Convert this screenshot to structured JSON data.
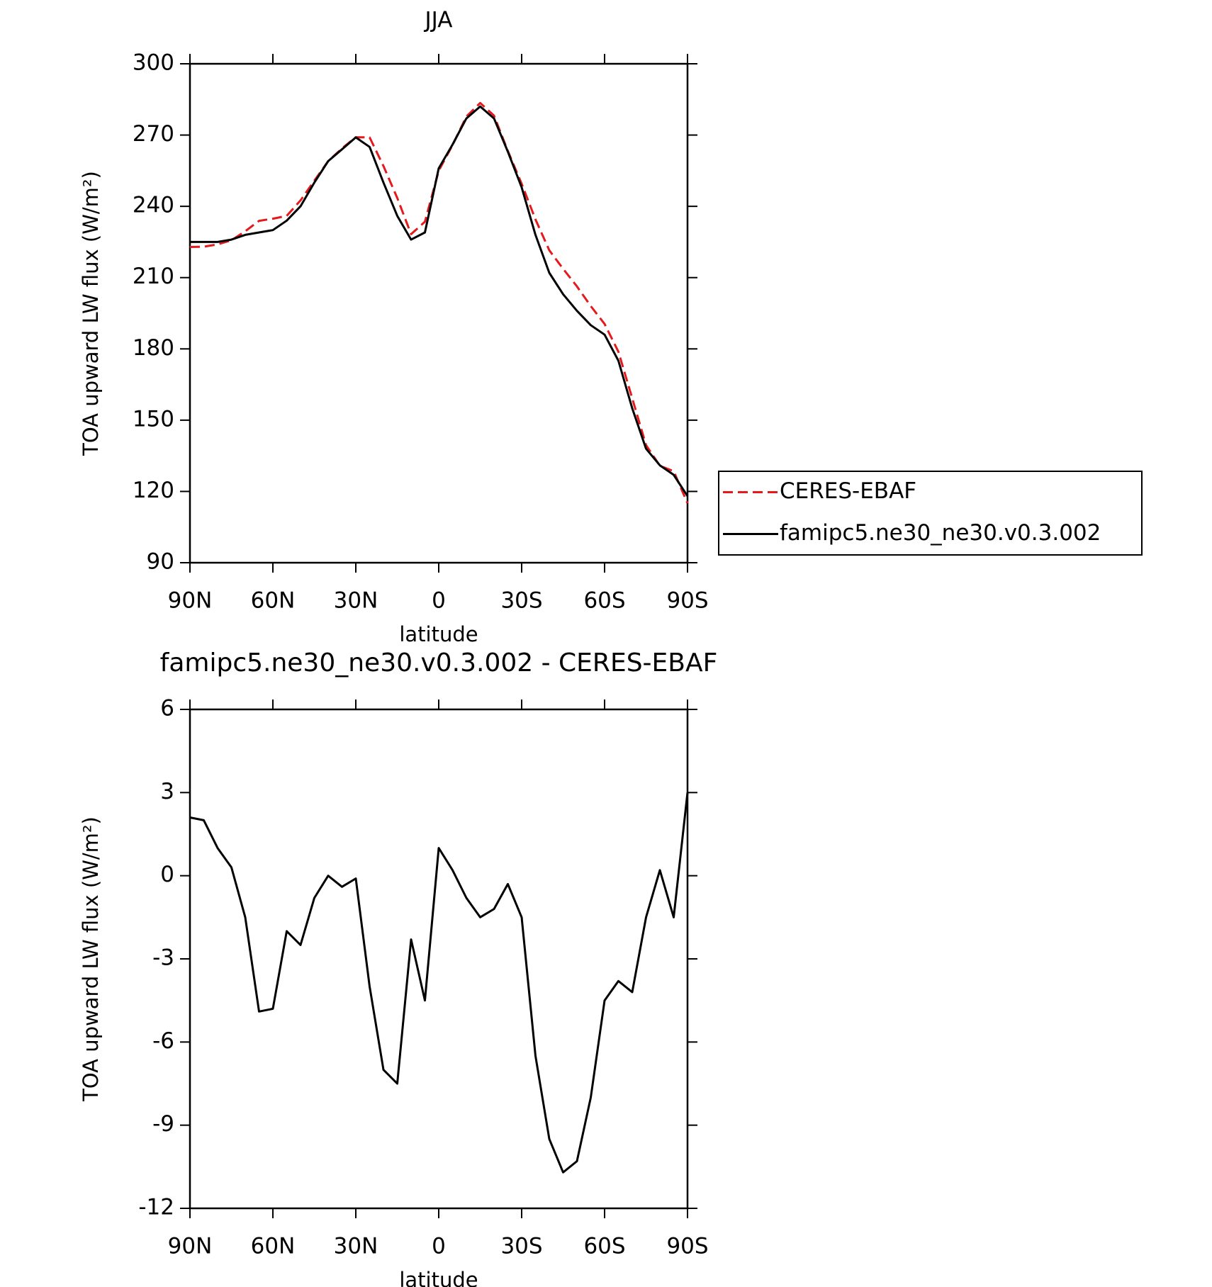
{
  "chart_data": [
    {
      "type": "line",
      "title": "JJA",
      "xlabel": "latitude",
      "ylabel": "TOA upward LW flux (W/m²)",
      "x": [
        90,
        85,
        80,
        75,
        70,
        65,
        60,
        55,
        50,
        45,
        40,
        35,
        30,
        25,
        20,
        15,
        10,
        5,
        0,
        -5,
        -10,
        -15,
        -20,
        -25,
        -30,
        -35,
        -40,
        -45,
        -50,
        -55,
        -60,
        -65,
        -70,
        -75,
        -80,
        -85,
        -90
      ],
      "xlim": [
        90,
        -90
      ],
      "xticks": [
        {
          "value": 90,
          "label": "90N"
        },
        {
          "value": 60,
          "label": "60N"
        },
        {
          "value": 30,
          "label": "30N"
        },
        0,
        {
          "value": -30,
          "label": "30S"
        },
        {
          "value": -60,
          "label": "60S"
        },
        {
          "value": -90,
          "label": "90S"
        }
      ],
      "ylim": [
        90,
        300
      ],
      "yticks": [
        90,
        120,
        150,
        180,
        210,
        240,
        270,
        300
      ],
      "legend": "right",
      "series": [
        {
          "name": "CERES-EBAF",
          "color": "#e41a1c",
          "line_style": "dashed",
          "values": [
            222.9,
            223,
            224,
            225.7,
            229.5,
            233.9,
            234.8,
            236,
            242.5,
            250.8,
            259,
            264.4,
            269.1,
            269,
            257,
            243.5,
            228.3,
            233.5,
            255,
            265.8,
            277.8,
            283.5,
            278.2,
            263.3,
            249.5,
            234.5,
            221.5,
            213.7,
            206.3,
            198,
            190.5,
            178.8,
            159.2,
            139.5,
            130.8,
            128.5,
            115
          ]
        },
        {
          "name": "famipc5.ne30_ne30.v0.3.002",
          "color": "#000000",
          "line_style": "solid",
          "values": [
            225,
            225,
            225,
            226,
            228,
            229,
            230,
            234,
            240,
            250,
            259,
            264,
            269,
            265,
            250,
            236,
            226,
            229,
            256,
            266,
            277,
            282,
            277,
            263,
            248,
            228,
            212,
            203,
            196,
            190,
            186,
            175,
            155,
            138,
            131,
            127,
            118
          ]
        }
      ]
    },
    {
      "type": "line",
      "title": "famipc5.ne30_ne30.v0.3.002 - CERES-EBAF",
      "xlabel": "latitude",
      "ylabel": "TOA upward LW flux (W/m²)",
      "x": [
        90,
        85,
        80,
        75,
        70,
        65,
        60,
        55,
        50,
        45,
        40,
        35,
        30,
        25,
        20,
        15,
        10,
        5,
        0,
        -5,
        -10,
        -15,
        -20,
        -25,
        -30,
        -35,
        -40,
        -45,
        -50,
        -55,
        -60,
        -65,
        -70,
        -75,
        -80,
        -85,
        -90
      ],
      "xlim": [
        90,
        -90
      ],
      "xticks": [
        {
          "value": 90,
          "label": "90N"
        },
        {
          "value": 60,
          "label": "60N"
        },
        {
          "value": 30,
          "label": "30N"
        },
        0,
        {
          "value": -30,
          "label": "30S"
        },
        {
          "value": -60,
          "label": "60S"
        },
        {
          "value": -90,
          "label": "90S"
        }
      ],
      "ylim": [
        -12,
        6
      ],
      "yticks": [
        -12,
        -9,
        -6,
        -3,
        0,
        3,
        6
      ],
      "series": [
        {
          "color": "#000000",
          "line_style": "solid",
          "values": [
            2.1,
            2.0,
            1.0,
            0.3,
            -1.5,
            -4.9,
            -4.8,
            -2.0,
            -2.5,
            -0.8,
            0.0,
            -0.4,
            -0.1,
            -4.0,
            -7.0,
            -7.5,
            -2.3,
            -4.5,
            1.0,
            0.2,
            -0.8,
            -1.5,
            -1.2,
            -0.3,
            -1.5,
            -6.5,
            -9.5,
            -10.7,
            -10.3,
            -8.0,
            -4.5,
            -3.8,
            -4.2,
            -1.5,
            0.2,
            -1.5,
            3.0
          ]
        }
      ]
    }
  ]
}
